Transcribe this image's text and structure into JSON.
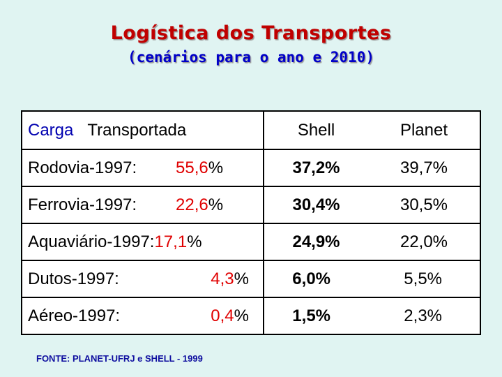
{
  "title": "Logística dos Transportes",
  "subtitle": "(cenários para o ano e 2010)",
  "table": {
    "header": {
      "category": "Carga",
      "category2": "Transportada",
      "shell": "Shell",
      "planet": "Planet"
    },
    "rows": [
      {
        "label": "Rodovia-1997:",
        "val_int": "55,",
        "val_dec": "6",
        "pct": "%",
        "shell": "37,2%",
        "planet": "39,7%"
      },
      {
        "label": "Ferrovia-1997:",
        "val_int": "22,",
        "val_dec": "6",
        "pct": "%",
        "shell": "30,4%",
        "planet": "30,5%"
      },
      {
        "label": "Aquaviário-1997:",
        "val_int": "17,",
        "val_dec": "1",
        "pct": "%",
        "shell": "24,9%",
        "planet": "22,0%"
      },
      {
        "label": "Dutos-1997:",
        "val_int": "4,",
        "val_dec": "3",
        "pct": "%",
        "shell": "6,0%",
        "planet": "5,5%"
      },
      {
        "label": "Aéreo-1997:",
        "val_int": "0,",
        "val_dec": "4",
        "pct": "%",
        "shell": "1,5%",
        "planet": "2,3%"
      }
    ]
  },
  "source": "FONTE: PLANET-UFRJ e SHELL - 1999",
  "colors": {
    "background": "#e0f4f2",
    "title": "#c00000",
    "subtitle": "#0000c8",
    "value_red": "#e00000"
  }
}
